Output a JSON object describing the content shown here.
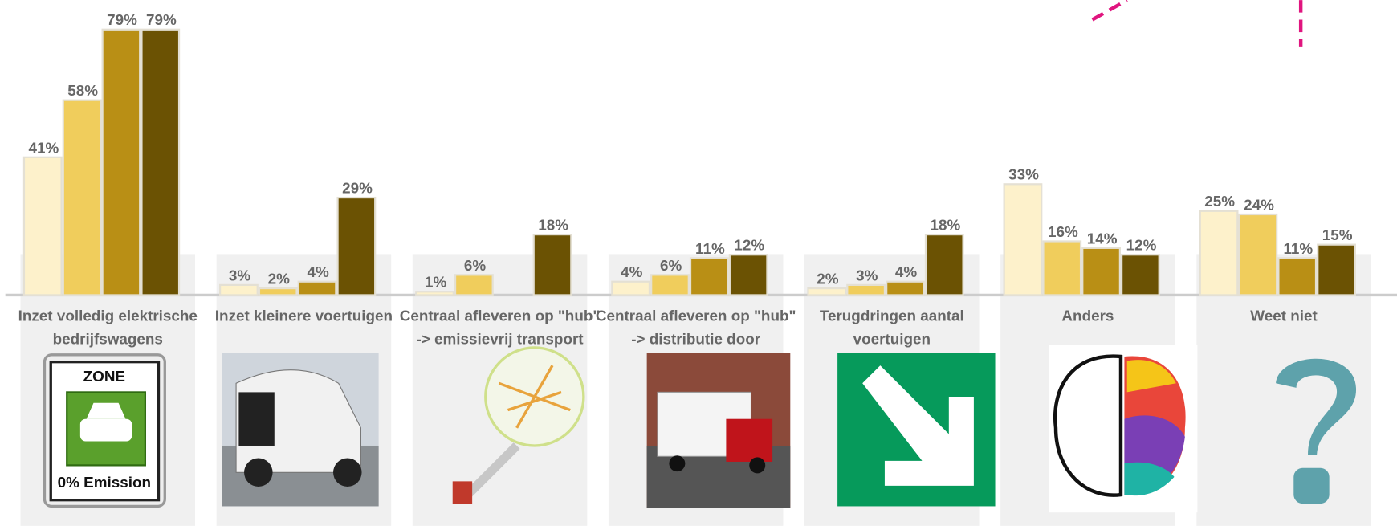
{
  "chart_data": {
    "type": "bar",
    "categories": [
      "Inzet volledig elektrische bedrijfswagens",
      "Inzet kleinere voertuigen",
      "Centraal afleveren op \"hub\" ->  emissievrij transport",
      "Centraal afleveren op \"hub\" -> distributie door",
      "Terugdringen aantal voertuigen",
      "Anders",
      "Weet niet"
    ],
    "series": [
      {
        "color": "#fdf1cb",
        "values": [
          41,
          3,
          1,
          4,
          2,
          33,
          25
        ],
        "value_labels": [
          "41%",
          "3%",
          "1%",
          "4%",
          "2%",
          "33%",
          "25%"
        ]
      },
      {
        "color": "#f0cd5c",
        "values": [
          58,
          2,
          6,
          6,
          3,
          16,
          24
        ],
        "value_labels": [
          "58%",
          "2%",
          "6%",
          "6%",
          "3%",
          "16%",
          "24%"
        ]
      },
      {
        "color": "#b98f15",
        "values": [
          79,
          4,
          null,
          11,
          4,
          14,
          11
        ],
        "value_labels": [
          "79%",
          "4%",
          null,
          "11%",
          "4%",
          "14%",
          "11%"
        ]
      },
      {
        "color": "#6b5203",
        "values": [
          79,
          29,
          18,
          12,
          18,
          12,
          15
        ],
        "value_labels": [
          "79%",
          "29%",
          "18%",
          "12%",
          "18%",
          "12%",
          "15%"
        ]
      }
    ]
  },
  "sign": {
    "top": "ZONE",
    "bottom": "0% Emission"
  }
}
